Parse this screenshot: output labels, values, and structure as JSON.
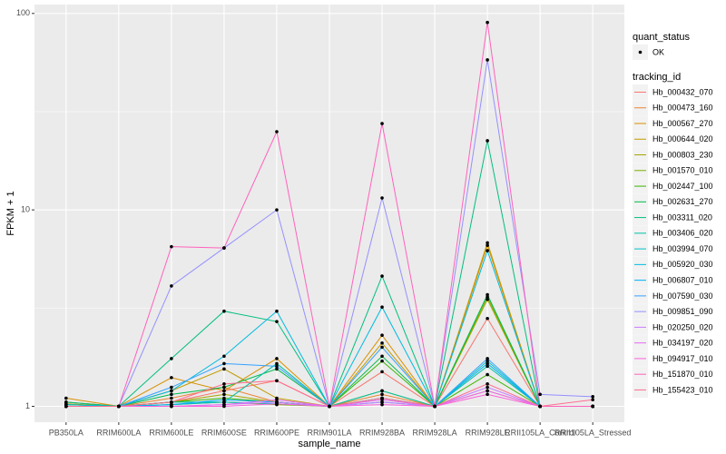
{
  "chart_data": {
    "type": "line",
    "log_scale": true,
    "grid": true,
    "x_label": "sample_name",
    "y_label": "FPKM + 1",
    "categories": [
      "PB350LA",
      "RRIM600LA",
      "RRIM600LE",
      "RRIM600SE",
      "RRIM600PE",
      "RRIM901LA",
      "RRIM928BA",
      "RRIM928LA",
      "RRIM928LE",
      "RRII105LA_Control",
      "RRII105LA_Stressed"
    ],
    "ylim": [
      0.83,
      111
    ],
    "yticks": [
      1,
      10,
      100
    ],
    "shape_legend_title": "quant_status",
    "shape_legend_label": "OK",
    "legend_title": "tracking_id",
    "series": [
      {
        "name": "Hb_000432_070",
        "color": "#F8766D",
        "values": [
          1.05,
          1.0,
          1.05,
          1.2,
          1.35,
          1.0,
          1.5,
          1.0,
          2.8,
          1.0,
          1.0
        ]
      },
      {
        "name": "Hb_000473_160",
        "color": "#EA8331",
        "values": [
          1.02,
          1.0,
          1.1,
          1.25,
          1.05,
          1.0,
          1.15,
          1.0,
          1.2,
          1.0,
          1.0
        ]
      },
      {
        "name": "Hb_000567_270",
        "color": "#D89000",
        "values": [
          1.1,
          1.0,
          1.4,
          1.2,
          1.75,
          1.0,
          2.3,
          1.0,
          6.6,
          1.0,
          1.0
        ]
      },
      {
        "name": "Hb_000644_020",
        "color": "#C09B00",
        "values": [
          1.05,
          1.0,
          1.2,
          1.55,
          1.1,
          1.0,
          2.1,
          1.0,
          6.8,
          1.0,
          1.0
        ]
      },
      {
        "name": "Hb_000803_230",
        "color": "#A3A500",
        "values": [
          1.03,
          1.0,
          1.05,
          1.15,
          1.05,
          1.0,
          1.2,
          1.0,
          3.5,
          1.0,
          1.0
        ]
      },
      {
        "name": "Hb_001570_010",
        "color": "#7CAE00",
        "values": [
          1.0,
          1.0,
          1.02,
          1.05,
          1.02,
          1.0,
          1.1,
          1.0,
          3.6,
          1.0,
          1.0
        ]
      },
      {
        "name": "Hb_002447_100",
        "color": "#39B600",
        "values": [
          1.0,
          1.0,
          1.05,
          1.1,
          1.05,
          1.0,
          1.7,
          1.0,
          1.45,
          1.0,
          1.0
        ]
      },
      {
        "name": "Hb_002631_270",
        "color": "#00BB4E",
        "values": [
          1.02,
          1.0,
          1.15,
          1.25,
          1.55,
          1.0,
          1.8,
          1.0,
          3.7,
          1.0,
          1.0
        ]
      },
      {
        "name": "Hb_003311_020",
        "color": "#00BF7D",
        "values": [
          1.05,
          1.0,
          1.75,
          3.05,
          2.7,
          1.0,
          4.6,
          1.0,
          22.5,
          1.0,
          1.0
        ]
      },
      {
        "name": "Hb_003406_020",
        "color": "#00C1A3",
        "values": [
          1.0,
          1.0,
          1.05,
          1.05,
          1.65,
          1.0,
          1.2,
          1.0,
          1.6,
          1.0,
          1.0
        ]
      },
      {
        "name": "Hb_003994_070",
        "color": "#00BFC4",
        "values": [
          1.0,
          1.0,
          1.02,
          1.05,
          1.03,
          1.0,
          1.05,
          1.0,
          1.7,
          1.0,
          1.0
        ]
      },
      {
        "name": "Hb_005920_030",
        "color": "#00BAE0",
        "values": [
          1.02,
          1.0,
          1.2,
          1.8,
          3.05,
          1.0,
          3.2,
          1.0,
          6.2,
          1.0,
          1.0
        ]
      },
      {
        "name": "Hb_006807_010",
        "color": "#00B0F6",
        "values": [
          1.0,
          1.0,
          1.02,
          1.08,
          1.05,
          1.0,
          1.1,
          1.0,
          1.65,
          1.0,
          1.0
        ]
      },
      {
        "name": "Hb_007590_030",
        "color": "#35A2FF",
        "values": [
          1.0,
          1.0,
          1.25,
          1.65,
          1.6,
          1.0,
          2.0,
          1.0,
          1.75,
          1.0,
          1.0
        ]
      },
      {
        "name": "Hb_009851_090",
        "color": "#9590FF",
        "values": [
          1.0,
          1.0,
          4.1,
          6.4,
          10,
          1.0,
          11.5,
          1.0,
          58,
          1.15,
          1.12
        ]
      },
      {
        "name": "Hb_020250_020",
        "color": "#C77CFF",
        "values": [
          1.0,
          1.0,
          1.0,
          1.02,
          1.05,
          1.0,
          1.05,
          1.0,
          1.25,
          1.0,
          1.0
        ]
      },
      {
        "name": "Hb_034197_020",
        "color": "#E76BF3",
        "values": [
          1.0,
          1.0,
          1.0,
          1.02,
          1.08,
          1.0,
          1.08,
          1.0,
          1.2,
          1.0,
          1.0
        ]
      },
      {
        "name": "Hb_094917_010",
        "color": "#FA62DB",
        "values": [
          1.0,
          1.0,
          1.0,
          1.0,
          1.03,
          1.0,
          1.02,
          1.0,
          1.15,
          1.0,
          1.0
        ]
      },
      {
        "name": "Hb_151870_010",
        "color": "#FF62BC",
        "values": [
          1.0,
          1.0,
          6.5,
          6.4,
          25,
          1.0,
          27.5,
          1.0,
          90,
          1.0,
          1.0
        ]
      },
      {
        "name": "Hb_155423_010",
        "color": "#FF6C91",
        "values": [
          1.0,
          1.0,
          1.05,
          1.3,
          1.35,
          1.0,
          1.1,
          1.0,
          1.3,
          1.0,
          1.08
        ]
      }
    ]
  }
}
